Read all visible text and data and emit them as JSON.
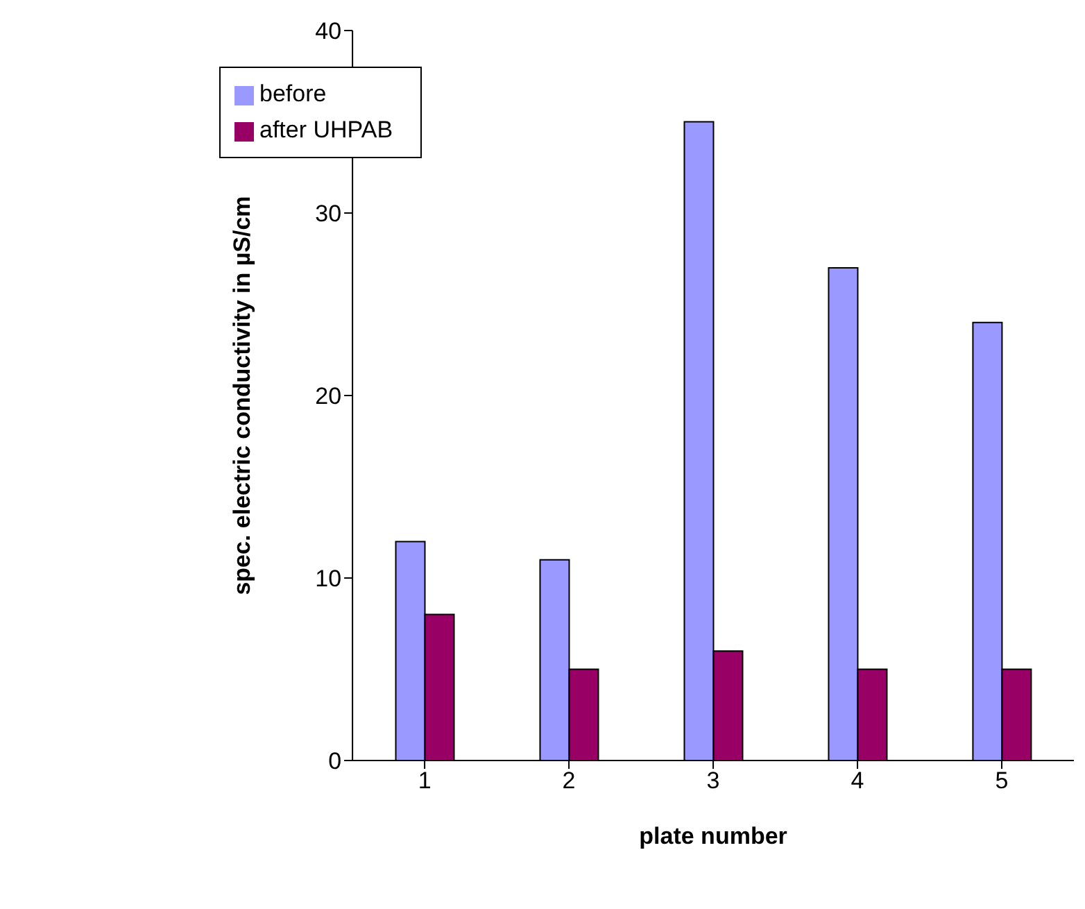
{
  "chart_data": {
    "type": "bar",
    "xlabel": "plate number",
    "ylabel": "spec. electric conductivity in µS/cm",
    "categories": [
      "1",
      "2",
      "3",
      "4",
      "5"
    ],
    "series": [
      {
        "name": "before",
        "color": "#9999ff",
        "values": [
          12,
          11,
          35,
          27,
          24
        ]
      },
      {
        "name": "after UHPAB",
        "color": "#990066",
        "values": [
          8,
          5,
          6,
          5,
          5
        ]
      }
    ],
    "ylim": [
      0,
      40
    ],
    "yticks": [
      0,
      10,
      20,
      30,
      40
    ],
    "grid": false,
    "legend": "top left"
  }
}
